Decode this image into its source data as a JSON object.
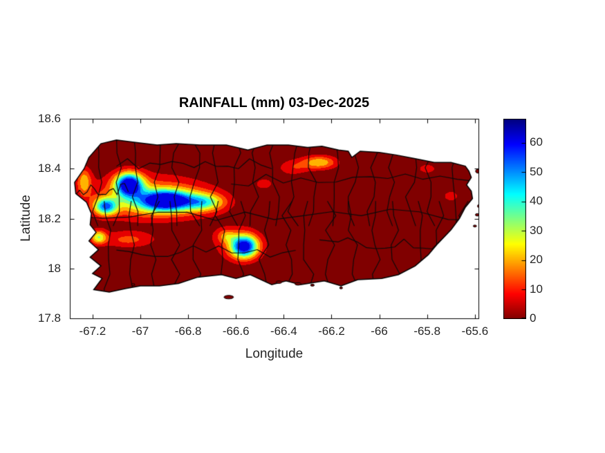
{
  "figure": {
    "background": "#ffffff",
    "text_color": "#262626",
    "title_color": "#000000"
  },
  "chart_data": {
    "type": "heatmap",
    "title": "RAINFALL (mm) 03-Dec-2025",
    "xlabel": "Longitude",
    "ylabel": "Latitude",
    "region": "Puerto Rico municipal rainfall map",
    "units": "mm",
    "xlim": [
      -67.295,
      -65.585
    ],
    "ylim": [
      17.8,
      18.6
    ],
    "x_ticks": [
      -67.2,
      -67.0,
      -66.8,
      -66.6,
      -66.4,
      -66.2,
      -66.0,
      -65.8,
      -65.6
    ],
    "x_tick_labels": [
      "-67.2",
      "-67",
      "-66.8",
      "-66.6",
      "-66.4",
      "-66.2",
      "-66",
      "-65.8",
      "-65.6"
    ],
    "y_ticks": [
      17.8,
      18.0,
      18.2,
      18.4,
      18.6
    ],
    "y_tick_labels": [
      "17.8",
      "18",
      "18.2",
      "18.4",
      "18.6"
    ],
    "grid": false,
    "colorbar": {
      "min": 0,
      "max": 68,
      "ticks": [
        0,
        10,
        20,
        30,
        40,
        50,
        60
      ],
      "tick_labels": [
        "0",
        "10",
        "20",
        "30",
        "40",
        "50",
        "60"
      ],
      "colormap": "jet_reversed",
      "position": "right"
    },
    "contour_interval_mm": 6.8,
    "rain_maxima": [
      {
        "lon": -67.05,
        "lat": 18.34,
        "peak_mm": 68,
        "note": "northwest interior maximum (dark blue)"
      },
      {
        "lon": -66.57,
        "lat": 18.09,
        "peak_mm": 64,
        "note": "south-central maximum (blue)"
      },
      {
        "lon": -67.18,
        "lat": 18.13,
        "peak_mm": 30,
        "note": "west-coast maximum (yellow)"
      },
      {
        "lon": -66.25,
        "lat": 18.43,
        "peak_mm": 26,
        "note": "north-central coastal maximum (orange)"
      }
    ],
    "rain_blobs": [
      [
        -66.97,
        18.285,
        0.42,
        0.145,
        18
      ],
      [
        -66.9,
        18.27,
        0.26,
        0.075,
        30
      ],
      [
        -67.047,
        18.337,
        0.085,
        0.068,
        68
      ],
      [
        -67.145,
        18.248,
        0.07,
        0.05,
        46
      ],
      [
        -66.89,
        18.272,
        0.14,
        0.055,
        44
      ],
      [
        -66.73,
        18.265,
        0.12,
        0.05,
        28
      ],
      [
        -67.235,
        18.35,
        0.045,
        0.08,
        22
      ],
      [
        -66.6,
        18.1,
        0.2,
        0.12,
        9
      ],
      [
        -66.565,
        18.088,
        0.085,
        0.068,
        64
      ],
      [
        -66.64,
        18.13,
        0.06,
        0.04,
        16
      ],
      [
        -67.05,
        18.115,
        0.17,
        0.05,
        15
      ],
      [
        -67.175,
        18.125,
        0.05,
        0.042,
        30
      ],
      [
        -66.25,
        18.425,
        0.11,
        0.042,
        26
      ],
      [
        -66.36,
        18.405,
        0.1,
        0.05,
        12
      ],
      [
        -65.8,
        18.4,
        0.11,
        0.055,
        8
      ],
      [
        -65.7,
        18.29,
        0.12,
        0.08,
        7.5
      ],
      [
        -66.48,
        18.34,
        0.1,
        0.06,
        7.5
      ]
    ],
    "island_outline": [
      [
        -67.215,
        18.445
      ],
      [
        -67.165,
        18.5
      ],
      [
        -67.1,
        18.515
      ],
      [
        -67.02,
        18.505
      ],
      [
        -66.93,
        18.495
      ],
      [
        -66.85,
        18.5
      ],
      [
        -66.75,
        18.495
      ],
      [
        -66.64,
        18.495
      ],
      [
        -66.55,
        18.475
      ],
      [
        -66.47,
        18.495
      ],
      [
        -66.38,
        18.495
      ],
      [
        -66.3,
        18.485
      ],
      [
        -66.24,
        18.49
      ],
      [
        -66.17,
        18.475
      ],
      [
        -66.13,
        18.47
      ],
      [
        -66.115,
        18.445
      ],
      [
        -66.08,
        18.47
      ],
      [
        -66.0,
        18.465
      ],
      [
        -65.93,
        18.455
      ],
      [
        -65.85,
        18.44
      ],
      [
        -65.77,
        18.425
      ],
      [
        -65.7,
        18.425
      ],
      [
        -65.64,
        18.41
      ],
      [
        -65.625,
        18.39
      ],
      [
        -65.615,
        18.365
      ],
      [
        -65.635,
        18.335
      ],
      [
        -65.615,
        18.31
      ],
      [
        -65.61,
        18.28
      ],
      [
        -65.64,
        18.245
      ],
      [
        -65.665,
        18.2
      ],
      [
        -65.7,
        18.155
      ],
      [
        -65.755,
        18.1
      ],
      [
        -65.795,
        18.055
      ],
      [
        -65.85,
        18.01
      ],
      [
        -65.92,
        17.975
      ],
      [
        -65.99,
        17.96
      ],
      [
        -66.09,
        17.955
      ],
      [
        -66.16,
        17.93
      ],
      [
        -66.23,
        17.95
      ],
      [
        -66.33,
        17.935
      ],
      [
        -66.39,
        17.95
      ],
      [
        -66.45,
        17.935
      ],
      [
        -66.54,
        17.975
      ],
      [
        -66.6,
        17.96
      ],
      [
        -66.66,
        17.975
      ],
      [
        -66.76,
        17.965
      ],
      [
        -66.84,
        17.94
      ],
      [
        -66.92,
        17.93
      ],
      [
        -67.0,
        17.93
      ],
      [
        -67.06,
        17.92
      ],
      [
        -67.13,
        17.905
      ],
      [
        -67.195,
        17.915
      ],
      [
        -67.16,
        17.96
      ],
      [
        -67.2,
        17.98
      ],
      [
        -67.165,
        18.01
      ],
      [
        -67.21,
        18.045
      ],
      [
        -67.175,
        18.075
      ],
      [
        -67.215,
        18.11
      ],
      [
        -67.185,
        18.145
      ],
      [
        -67.21,
        18.175
      ],
      [
        -67.205,
        18.22
      ],
      [
        -67.225,
        18.265
      ],
      [
        -67.27,
        18.3
      ],
      [
        -67.275,
        18.345
      ],
      [
        -67.235,
        18.4
      ]
    ],
    "islets": [
      [
        -65.585,
        18.39,
        0.012,
        0.008
      ],
      [
        -65.572,
        18.355,
        0.008,
        0.005
      ],
      [
        -65.575,
        18.25,
        0.014,
        0.009
      ],
      [
        -65.59,
        18.215,
        0.008,
        0.005
      ],
      [
        -65.6,
        18.17,
        0.007,
        0.004
      ],
      [
        -66.63,
        17.885,
        0.02,
        0.007
      ],
      [
        -66.42,
        17.945,
        0.012,
        0.005
      ],
      [
        -66.34,
        17.938,
        0.013,
        0.005
      ],
      [
        -66.28,
        17.933,
        0.008,
        0.004
      ],
      [
        -67.03,
        17.935,
        0.007,
        0.004
      ],
      [
        -66.16,
        17.922,
        0.006,
        0.004
      ]
    ],
    "border_style": {
      "seed": 11,
      "north_columns": 19,
      "south_columns": 17,
      "row_boundary_lat": 18.215
    }
  }
}
